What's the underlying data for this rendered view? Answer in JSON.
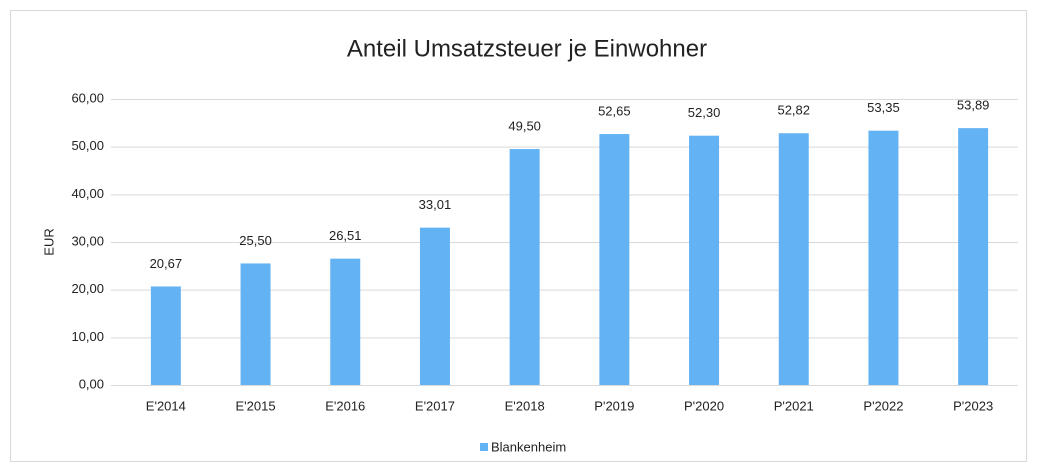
{
  "chart_data": {
    "type": "bar",
    "title": "Anteil Umsatzsteuer je Einwohner",
    "y_label": "EUR",
    "categories": [
      "E'2014",
      "E'2015",
      "E'2016",
      "E'2017",
      "E'2018",
      "P'2019",
      "P'2020",
      "P'2021",
      "P'2022",
      "P'2023"
    ],
    "series": [
      {
        "name": "Blankenheim",
        "color": "#63b3f4",
        "values": [
          20.67,
          25.5,
          26.51,
          33.01,
          49.5,
          52.65,
          52.3,
          52.82,
          53.35,
          53.89
        ],
        "value_labels": [
          "20,67",
          "25,50",
          "26,51",
          "33,01",
          "49,50",
          "52,65",
          "52,30",
          "52,82",
          "53,35",
          "53,89"
        ]
      }
    ],
    "ylim": [
      0,
      60
    ],
    "yticks": [
      {
        "value": 0,
        "label": "0,00"
      },
      {
        "value": 10,
        "label": "10,00"
      },
      {
        "value": 20,
        "label": "20,00"
      },
      {
        "value": 30,
        "label": "30,00"
      },
      {
        "value": 40,
        "label": "40,00"
      },
      {
        "value": 50,
        "label": "50,00"
      },
      {
        "value": 60,
        "label": "60,00"
      }
    ],
    "grid": true,
    "legend": "bottom"
  }
}
